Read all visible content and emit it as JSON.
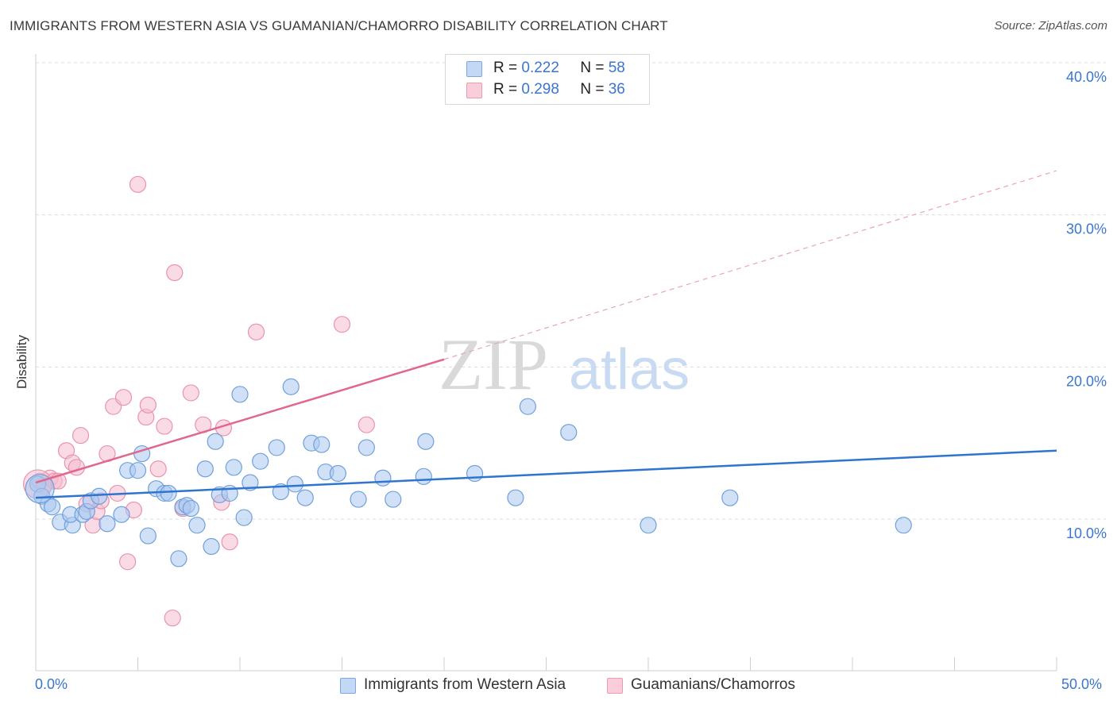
{
  "title": "IMMIGRANTS FROM WESTERN ASIA VS GUAMANIAN/CHAMORRO DISABILITY CORRELATION CHART",
  "source": "Source: ZipAtlas.com",
  "watermark": {
    "left": "ZIP",
    "right": "atlas"
  },
  "colors": {
    "blue_fill": "#a9c8f0",
    "blue_stroke": "#6f9fdc",
    "blue_line": "#2f74d0",
    "pink_fill": "#f6bccd",
    "pink_stroke": "#e993ad",
    "pink_line": "#e0688f",
    "tick_label": "#3a76d0"
  },
  "legend": {
    "rows": [
      {
        "r_label": "R =",
        "r_value": "0.222",
        "n_label": "N =",
        "n_value": "58"
      },
      {
        "r_label": "R =",
        "r_value": "0.298",
        "n_label": "N =",
        "n_value": "36"
      }
    ]
  },
  "x_axis": {
    "min_label": "0.0%",
    "max_label": "50.0%"
  },
  "y_axis": {
    "label": "Disability",
    "ticks": [
      "10.0%",
      "20.0%",
      "30.0%",
      "40.0%"
    ]
  },
  "chart_data": {
    "type": "scatter",
    "title": "IMMIGRANTS FROM WESTERN ASIA VS GUAMANIAN/CHAMORRO DISABILITY CORRELATION CHART",
    "xlabel": "",
    "ylabel": "Disability",
    "xlim": [
      0,
      50
    ],
    "ylim": [
      0,
      42
    ],
    "y_ticks": [
      10,
      20,
      30,
      40
    ],
    "grid": "horizontal dashed",
    "legend_position": "top-center",
    "series": [
      {
        "name": "Immigrants from Western Asia",
        "R": 0.222,
        "N": 58,
        "trend": {
          "x": [
            0,
            50
          ],
          "y": [
            11.4,
            14.5
          ],
          "style": "solid"
        },
        "points": [
          [
            0.1,
            12.3
          ],
          [
            0.3,
            11.5
          ],
          [
            0.6,
            11.0
          ],
          [
            0.8,
            10.8
          ],
          [
            1.2,
            9.8
          ],
          [
            1.8,
            9.6
          ],
          [
            1.7,
            10.3
          ],
          [
            2.3,
            10.3
          ],
          [
            2.5,
            10.5
          ],
          [
            2.7,
            11.2
          ],
          [
            3.1,
            11.5
          ],
          [
            3.5,
            9.7
          ],
          [
            4.2,
            10.3
          ],
          [
            4.5,
            13.2
          ],
          [
            5.0,
            13.2
          ],
          [
            5.2,
            14.3
          ],
          [
            5.5,
            8.9
          ],
          [
            5.9,
            12.0
          ],
          [
            6.3,
            11.7
          ],
          [
            6.5,
            11.7
          ],
          [
            7.0,
            7.4
          ],
          [
            7.2,
            10.8
          ],
          [
            7.4,
            10.9
          ],
          [
            7.6,
            10.7
          ],
          [
            7.9,
            9.6
          ],
          [
            8.3,
            13.3
          ],
          [
            8.6,
            8.2
          ],
          [
            8.8,
            15.1
          ],
          [
            9.0,
            11.6
          ],
          [
            9.5,
            11.7
          ],
          [
            9.7,
            13.4
          ],
          [
            10.0,
            18.2
          ],
          [
            10.2,
            10.1
          ],
          [
            10.5,
            12.4
          ],
          [
            11.0,
            13.8
          ],
          [
            11.8,
            14.7
          ],
          [
            12.0,
            11.8
          ],
          [
            12.5,
            18.7
          ],
          [
            12.7,
            12.3
          ],
          [
            13.2,
            11.4
          ],
          [
            13.5,
            15.0
          ],
          [
            14.0,
            14.9
          ],
          [
            14.2,
            13.1
          ],
          [
            14.8,
            13.0
          ],
          [
            15.8,
            11.3
          ],
          [
            16.2,
            14.7
          ],
          [
            17.0,
            12.7
          ],
          [
            17.5,
            11.3
          ],
          [
            19.0,
            12.8
          ],
          [
            19.1,
            15.1
          ],
          [
            21.5,
            13.0
          ],
          [
            23.5,
            11.4
          ],
          [
            24.1,
            17.4
          ],
          [
            26.1,
            15.7
          ],
          [
            30.0,
            9.6
          ],
          [
            34.0,
            11.4
          ],
          [
            42.5,
            9.6
          ],
          [
            0.2,
            12.0
          ]
        ]
      },
      {
        "name": "Guamanians/Chamorros",
        "R": 0.298,
        "N": 36,
        "trend": {
          "x": [
            0,
            20
          ],
          "y": [
            12.4,
            20.5
          ],
          "x_ext": [
            20,
            50
          ],
          "y_ext": [
            20.5,
            32.9
          ],
          "style": "solid then dashed"
        },
        "points": [
          [
            0.2,
            12.5
          ],
          [
            0.4,
            12.2
          ],
          [
            0.7,
            12.7
          ],
          [
            0.9,
            12.5
          ],
          [
            1.1,
            12.5
          ],
          [
            1.5,
            14.5
          ],
          [
            1.8,
            13.7
          ],
          [
            2.0,
            13.4
          ],
          [
            2.2,
            15.5
          ],
          [
            2.5,
            11.0
          ],
          [
            2.8,
            9.6
          ],
          [
            3.0,
            10.5
          ],
          [
            3.2,
            11.2
          ],
          [
            3.5,
            14.3
          ],
          [
            3.8,
            17.4
          ],
          [
            4.0,
            11.7
          ],
          [
            4.3,
            18.0
          ],
          [
            4.5,
            7.2
          ],
          [
            4.8,
            10.6
          ],
          [
            5.0,
            32.0
          ],
          [
            5.4,
            16.7
          ],
          [
            5.5,
            17.5
          ],
          [
            6.0,
            13.3
          ],
          [
            6.3,
            16.1
          ],
          [
            6.7,
            3.5
          ],
          [
            6.8,
            26.2
          ],
          [
            7.2,
            10.7
          ],
          [
            7.6,
            18.3
          ],
          [
            8.2,
            16.2
          ],
          [
            9.1,
            11.1
          ],
          [
            9.2,
            16.0
          ],
          [
            9.5,
            8.5
          ],
          [
            10.8,
            22.3
          ],
          [
            15.0,
            22.8
          ],
          [
            16.2,
            16.2
          ],
          [
            0.1,
            12.3
          ]
        ]
      }
    ]
  }
}
